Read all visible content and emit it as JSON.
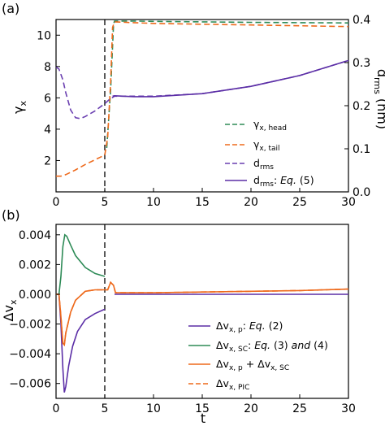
{
  "panels": {
    "a": {
      "label": "(a)",
      "ylabel_left": "γ_x",
      "ylabel_right": "d_rms (nm)",
      "xticks": [
        "0",
        "5",
        "10",
        "15",
        "20",
        "25",
        "30"
      ],
      "yticks_left": [
        "2",
        "4",
        "6",
        "8",
        "10"
      ],
      "yticks_right": [
        "0.0",
        "0.1",
        "0.2",
        "0.3",
        "0.4"
      ],
      "legend": [
        "γ_x,head",
        "γ_x,tail",
        "d_rms",
        "d_rms: Eq. (5)"
      ]
    },
    "b": {
      "label": "(b)",
      "ylabel": "Δv_x",
      "xlabel": "t",
      "xticks": [
        "0",
        "5",
        "10",
        "15",
        "20",
        "25",
        "30"
      ],
      "yticks": [
        "0.004",
        "0.002",
        "0.000",
        "−0.002",
        "−0.004",
        "−0.006"
      ],
      "legend": [
        "Δv_x,p: Eq. (2)",
        "Δv_x,SC: Eq. (3) and (4)",
        "Δv_x,p + Δv_x,SC",
        "Δv_x,PIC"
      ]
    }
  },
  "chart_data": [
    {
      "panel": "a",
      "type": "line",
      "xlim": [
        0,
        30
      ],
      "ylim_left": [
        0,
        11
      ],
      "ylim_right": [
        0,
        0.4
      ],
      "vline_x": 5,
      "series": [
        {
          "name": "γ_x,head",
          "axis": "left",
          "color": "#2e8b57",
          "style": "dashed",
          "x": [
            5.2,
            5.6,
            5.9,
            6,
            8,
            10,
            15,
            20,
            25,
            30
          ],
          "y": [
            2.8,
            6.5,
            10.7,
            10.9,
            10.9,
            10.88,
            10.85,
            10.82,
            10.8,
            10.78
          ]
        },
        {
          "name": "γ_x,tail",
          "axis": "left",
          "color": "#ee6a1c",
          "style": "dashed",
          "x": [
            0,
            0.5,
            1,
            2,
            3,
            4,
            5,
            5.3,
            5.6,
            5.8,
            6,
            8,
            10,
            15,
            20,
            25,
            30
          ],
          "y": [
            1.0,
            1.0,
            1.1,
            1.4,
            1.75,
            2.05,
            2.35,
            3.5,
            7,
            10.5,
            10.85,
            10.8,
            10.75,
            10.7,
            10.65,
            10.6,
            10.55
          ]
        },
        {
          "name": "d_rms",
          "axis": "right",
          "color": "#6a3fb0",
          "style": "dashed",
          "x": [
            0,
            0.3,
            0.7,
            1,
            1.5,
            2,
            2.5,
            3,
            4,
            5,
            5.5,
            6,
            8,
            10,
            15,
            20,
            25,
            30
          ],
          "y": [
            0.29,
            0.285,
            0.26,
            0.23,
            0.19,
            0.172,
            0.17,
            0.175,
            0.188,
            0.205,
            0.215,
            0.222,
            0.222,
            0.222,
            0.228,
            0.245,
            0.27,
            0.305
          ]
        },
        {
          "name": "d_rms: Eq. (5)",
          "axis": "right",
          "color": "#5b2ea6",
          "style": "solid",
          "x": [
            5.8,
            6,
            8,
            10,
            15,
            20,
            25,
            30
          ],
          "y": [
            0.222,
            0.223,
            0.221,
            0.221,
            0.228,
            0.245,
            0.27,
            0.305
          ]
        }
      ]
    },
    {
      "panel": "b",
      "type": "line",
      "xlim": [
        0,
        30
      ],
      "ylim": [
        -0.007,
        0.0047
      ],
      "vline_x": 5,
      "series": [
        {
          "name": "Δv_x,p: Eq. (2)",
          "color": "#5b2ea6",
          "style": "solid",
          "x": [
            0,
            0.3,
            0.5,
            0.7,
            0.85,
            1,
            1.3,
            1.7,
            2.2,
            3,
            4,
            5
          ],
          "y": [
            0,
            0,
            -0.002,
            -0.005,
            -0.0066,
            -0.0062,
            -0.0048,
            -0.0035,
            -0.0025,
            -0.0017,
            -0.0013,
            -0.001
          ]
        },
        {
          "name": "Δv_x,SC: Eq. (3) and (4)",
          "color": "#2e8b57",
          "style": "solid",
          "x": [
            0,
            0.3,
            0.5,
            0.7,
            0.9,
            1.1,
            1.5,
            2,
            3,
            4,
            5
          ],
          "y": [
            0,
            0,
            0.0012,
            0.0032,
            0.004,
            0.0039,
            0.0033,
            0.0026,
            0.0018,
            0.0014,
            0.0012
          ]
        },
        {
          "name": "Δv_x,p + Δv_x,SC",
          "color": "#ee6a1c",
          "style": "solid",
          "x": [
            0,
            0.3,
            0.5,
            0.7,
            0.85,
            1,
            1.5,
            2,
            3,
            4,
            5
          ],
          "y": [
            0,
            0,
            -0.0015,
            -0.0033,
            -0.0034,
            -0.0026,
            -0.0012,
            -0.0004,
            0.0002,
            0.0003,
            0.0003
          ]
        },
        {
          "name": "Δv_x,PIC",
          "color": "#ee6a1c",
          "style": "dashed",
          "x": [
            0,
            0.3,
            0.5,
            0.7,
            0.85,
            1,
            1.5,
            2,
            3,
            4,
            5,
            5.3,
            5.6,
            5.9,
            6.1,
            8,
            10,
            15,
            20,
            25,
            30
          ],
          "y": [
            0,
            0,
            -0.0015,
            -0.0033,
            -0.0034,
            -0.0026,
            -0.0012,
            -0.0004,
            0.0002,
            0.0003,
            0.0003,
            0.0003,
            0.0008,
            0.0006,
            0.0001,
            0.0001,
            0.0001,
            0.00015,
            0.0002,
            0.00025,
            0.00035
          ]
        },
        {
          "name": "Δv_x,PIC (t>5)",
          "color": "#ee6a1c",
          "style": "solid",
          "x": [
            5,
            5.3,
            5.6,
            5.9,
            6.1,
            8,
            10,
            15,
            20,
            25,
            30
          ],
          "y": [
            0.0003,
            0.0003,
            0.0008,
            0.0006,
            0.0001,
            0.0001,
            0.0001,
            0.00015,
            0.0002,
            0.00025,
            0.00035
          ]
        },
        {
          "name": "Δv_x,p: Eq. (2) (t>5)",
          "color": "#5b2ea6",
          "style": "solid",
          "x": [
            6,
            10,
            15,
            20,
            25,
            30
          ],
          "y": [
            0,
            0,
            0,
            0,
            0,
            0
          ]
        }
      ]
    }
  ]
}
